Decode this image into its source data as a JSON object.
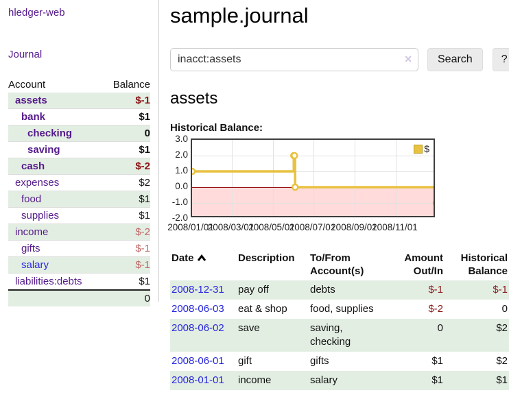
{
  "app": {
    "brand": "hledger-web"
  },
  "sidebar": {
    "nav_journal": "Journal",
    "table": {
      "account_header": "Account",
      "balance_header": "Balance",
      "accounts": [
        {
          "name": "assets",
          "depth": 1,
          "bold": true,
          "link": "purple",
          "balance": "$-1",
          "balance_class": "neg-strong"
        },
        {
          "name": "bank",
          "depth": 2,
          "bold": true,
          "link": "purple",
          "balance": "$1",
          "balance_class": ""
        },
        {
          "name": "checking",
          "depth": 3,
          "bold": true,
          "link": "purple",
          "balance": "0",
          "balance_class": ""
        },
        {
          "name": "saving",
          "depth": 3,
          "bold": true,
          "link": "purple",
          "balance": "$1",
          "balance_class": ""
        },
        {
          "name": "cash",
          "depth": 2,
          "bold": true,
          "link": "purple",
          "balance": "$-2",
          "balance_class": "neg-strong"
        },
        {
          "name": "expenses",
          "depth": 1,
          "bold": false,
          "link": "purple",
          "balance": "$2",
          "balance_class": ""
        },
        {
          "name": "food",
          "depth": 2,
          "bold": false,
          "link": "purple",
          "balance": "$1",
          "balance_class": ""
        },
        {
          "name": "supplies",
          "depth": 2,
          "bold": false,
          "link": "purple",
          "balance": "$1",
          "balance_class": ""
        },
        {
          "name": "income",
          "depth": 1,
          "bold": false,
          "link": "purple",
          "balance": "$-2",
          "balance_class": "neg-soft"
        },
        {
          "name": "gifts",
          "depth": 2,
          "bold": false,
          "link": "purple",
          "balance": "$-1",
          "balance_class": "neg-soft"
        },
        {
          "name": "salary",
          "depth": 2,
          "bold": false,
          "link": "blue",
          "balance": "$-1",
          "balance_class": "neg-soft"
        },
        {
          "name": "liabilities:debts",
          "depth": 1,
          "bold": false,
          "link": "purple",
          "balance": "$1",
          "balance_class": ""
        }
      ],
      "total": "0"
    }
  },
  "main": {
    "title": "sample.journal",
    "search": {
      "value": "inacct:assets",
      "clear_icon": "✕",
      "button_label": "Search",
      "help_label": "?"
    },
    "account_heading": "assets",
    "chart_label": "Historical Balance:"
  },
  "chart_data": {
    "type": "line",
    "title": "Historical Balance",
    "step": true,
    "legend_label": "$",
    "x_range": [
      "2008-01-01",
      "2008-12-31"
    ],
    "ylim": [
      -2,
      3
    ],
    "yticks": [
      "3.0",
      "2.0",
      "1.0",
      "0.0",
      "-1.0",
      "-2.0"
    ],
    "xticks": [
      "2008/01/01",
      "2008/03/01",
      "2008/05/01",
      "2008/07/01",
      "2008/09/01",
      "2008/11/01"
    ],
    "points": [
      [
        "2008-01-01",
        1
      ],
      [
        "2008-06-01",
        2
      ],
      [
        "2008-06-02",
        2
      ],
      [
        "2008-06-03",
        0
      ],
      [
        "2008-12-31",
        -1
      ]
    ],
    "colors": {
      "line": "#e8c240",
      "marker_fill": "#ffffff",
      "negative_region": "#ffdbdb",
      "zero_line": "#991111",
      "grid": "#e2e2e2",
      "border": "#3d3d3d"
    }
  },
  "register": {
    "headers": {
      "date": "Date",
      "description": "Description",
      "accounts": "To/From Account(s)",
      "amount": "Amount Out/In",
      "balance": "Historical Balance"
    },
    "rows": [
      {
        "date": "2008-12-31",
        "description": "pay off",
        "accounts": "debts",
        "amount": "$-1",
        "amount_negative": true,
        "balance": "$-1",
        "balance_negative": true
      },
      {
        "date": "2008-06-03",
        "description": "eat & shop",
        "accounts": "food, supplies",
        "amount": "$-2",
        "amount_negative": true,
        "balance": "0",
        "balance_negative": false
      },
      {
        "date": "2008-06-02",
        "description": "save",
        "accounts": "saving, checking",
        "amount": "0",
        "amount_negative": false,
        "balance": "$2",
        "balance_negative": false
      },
      {
        "date": "2008-06-01",
        "description": "gift",
        "accounts": "gifts",
        "amount": "$1",
        "amount_negative": false,
        "balance": "$2",
        "balance_negative": false
      },
      {
        "date": "2008-01-01",
        "description": "income",
        "accounts": "salary",
        "amount": "$1",
        "amount_negative": false,
        "balance": "$1",
        "balance_negative": false
      }
    ]
  },
  "colors": {
    "link_purple": "#551a8b",
    "link_blue": "#2626dd",
    "negative_strong": "#8b1414",
    "negative_soft": "#c06868",
    "row_green": "#e3eee3"
  }
}
